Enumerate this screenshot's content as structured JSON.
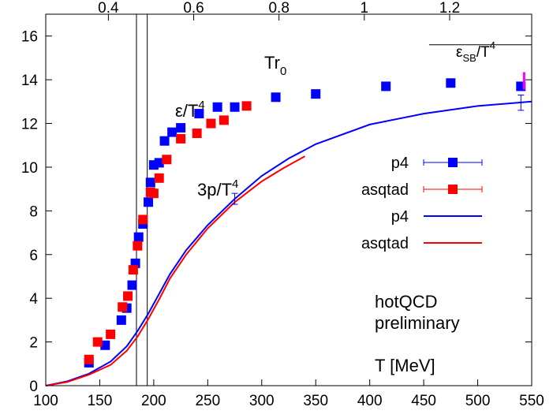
{
  "chart_data": {
    "type": "scatter",
    "x_axis": {
      "range": [
        100,
        550
      ],
      "ticks": [
        100,
        150,
        200,
        250,
        300,
        350,
        400,
        450,
        500,
        550
      ],
      "label": "T [MeV]"
    },
    "y_axis": {
      "range": [
        0,
        17
      ],
      "ticks": [
        0,
        2,
        4,
        6,
        8,
        10,
        12,
        14,
        16
      ]
    },
    "top_axis": {
      "label": "Tr",
      "label_sub": "0",
      "ticks": [
        {
          "label": "0.4",
          "t": 158
        },
        {
          "label": "0.6",
          "t": 237
        },
        {
          "label": "0.8",
          "t": 316
        },
        {
          "label": "1",
          "t": 395
        },
        {
          "label": "1.2",
          "t": 474
        }
      ]
    },
    "vertical_lines": [
      184,
      194
    ],
    "annotations": {
      "eps_label": "ε/T",
      "eps_sup": "4",
      "p_label": "3p/T",
      "p_sup": "4",
      "sb_label": "ε",
      "sb_sub": "SB",
      "sb_tail": "/T",
      "sb_sup": "4",
      "note_line1": "hotQCD",
      "note_line2": "preliminary",
      "sb_value": 15.6
    },
    "legend": [
      {
        "label": "p4",
        "kind": "points",
        "color": "#0000ff"
      },
      {
        "label": "asqtad",
        "kind": "points",
        "color": "#ff0000"
      },
      {
        "label": "p4",
        "kind": "line",
        "color": "#0000ff"
      },
      {
        "label": "asqtad",
        "kind": "line",
        "color": "#ff0000"
      }
    ],
    "series": [
      {
        "name": "p4",
        "kind": "points",
        "color": "#0000ff",
        "points": [
          [
            140,
            1.05
          ],
          [
            155,
            1.85
          ],
          [
            170,
            3.0
          ],
          [
            175,
            3.55
          ],
          [
            180,
            4.6
          ],
          [
            183,
            5.6
          ],
          [
            186,
            6.8
          ],
          [
            190,
            7.4
          ],
          [
            195,
            8.4
          ],
          [
            197,
            9.3
          ],
          [
            200,
            10.1
          ],
          [
            205,
            10.2
          ],
          [
            210,
            11.2
          ],
          [
            217,
            11.6
          ],
          [
            225,
            11.8
          ],
          [
            242,
            12.45
          ],
          [
            259,
            12.75
          ],
          [
            275,
            12.75
          ],
          [
            313,
            13.2
          ],
          [
            350,
            13.35
          ],
          [
            415,
            13.7
          ],
          [
            475,
            13.85
          ],
          [
            540,
            13.7
          ]
        ]
      },
      {
        "name": "asqtad",
        "kind": "points",
        "color": "#ff0000",
        "points": [
          [
            140,
            1.2
          ],
          [
            148,
            2.0
          ],
          [
            160,
            2.35
          ],
          [
            171,
            3.6
          ],
          [
            176,
            4.1
          ],
          [
            181,
            5.3
          ],
          [
            185,
            6.4
          ],
          [
            190,
            7.6
          ],
          [
            197,
            8.85
          ],
          [
            200,
            8.8
          ],
          [
            205,
            9.5
          ],
          [
            212,
            10.35
          ],
          [
            225,
            11.3
          ],
          [
            240,
            11.55
          ],
          [
            253,
            12.0
          ],
          [
            265,
            12.15
          ],
          [
            286,
            12.8
          ]
        ]
      },
      {
        "name": "p4",
        "kind": "line",
        "color": "#0000ff",
        "points": [
          [
            100,
            0.0
          ],
          [
            120,
            0.2
          ],
          [
            140,
            0.55
          ],
          [
            160,
            1.1
          ],
          [
            175,
            1.8
          ],
          [
            185,
            2.5
          ],
          [
            195,
            3.3
          ],
          [
            205,
            4.2
          ],
          [
            215,
            5.1
          ],
          [
            230,
            6.2
          ],
          [
            250,
            7.35
          ],
          [
            275,
            8.55
          ],
          [
            300,
            9.6
          ],
          [
            325,
            10.4
          ],
          [
            350,
            11.05
          ],
          [
            400,
            11.95
          ],
          [
            450,
            12.45
          ],
          [
            500,
            12.8
          ],
          [
            550,
            13.0
          ]
        ]
      },
      {
        "name": "asqtad",
        "kind": "line",
        "color": "#ff0000",
        "points": [
          [
            100,
            0.0
          ],
          [
            120,
            0.17
          ],
          [
            140,
            0.5
          ],
          [
            160,
            0.95
          ],
          [
            175,
            1.6
          ],
          [
            185,
            2.25
          ],
          [
            195,
            3.05
          ],
          [
            205,
            3.95
          ],
          [
            215,
            4.9
          ],
          [
            230,
            6.0
          ],
          [
            250,
            7.2
          ],
          [
            275,
            8.4
          ],
          [
            300,
            9.35
          ],
          [
            320,
            9.95
          ],
          [
            340,
            10.5
          ]
        ]
      }
    ],
    "error_bars": [
      {
        "x": 275,
        "y": 8.55,
        "err": 0.25,
        "color": "#0000ff"
      },
      {
        "x": 540,
        "y": 12.95,
        "err": 0.35,
        "color": "#0000ff"
      }
    ],
    "sb_marker": {
      "x": 543,
      "y_low": 13.55,
      "y_high": 14.35,
      "color": "#ff00ff"
    }
  }
}
